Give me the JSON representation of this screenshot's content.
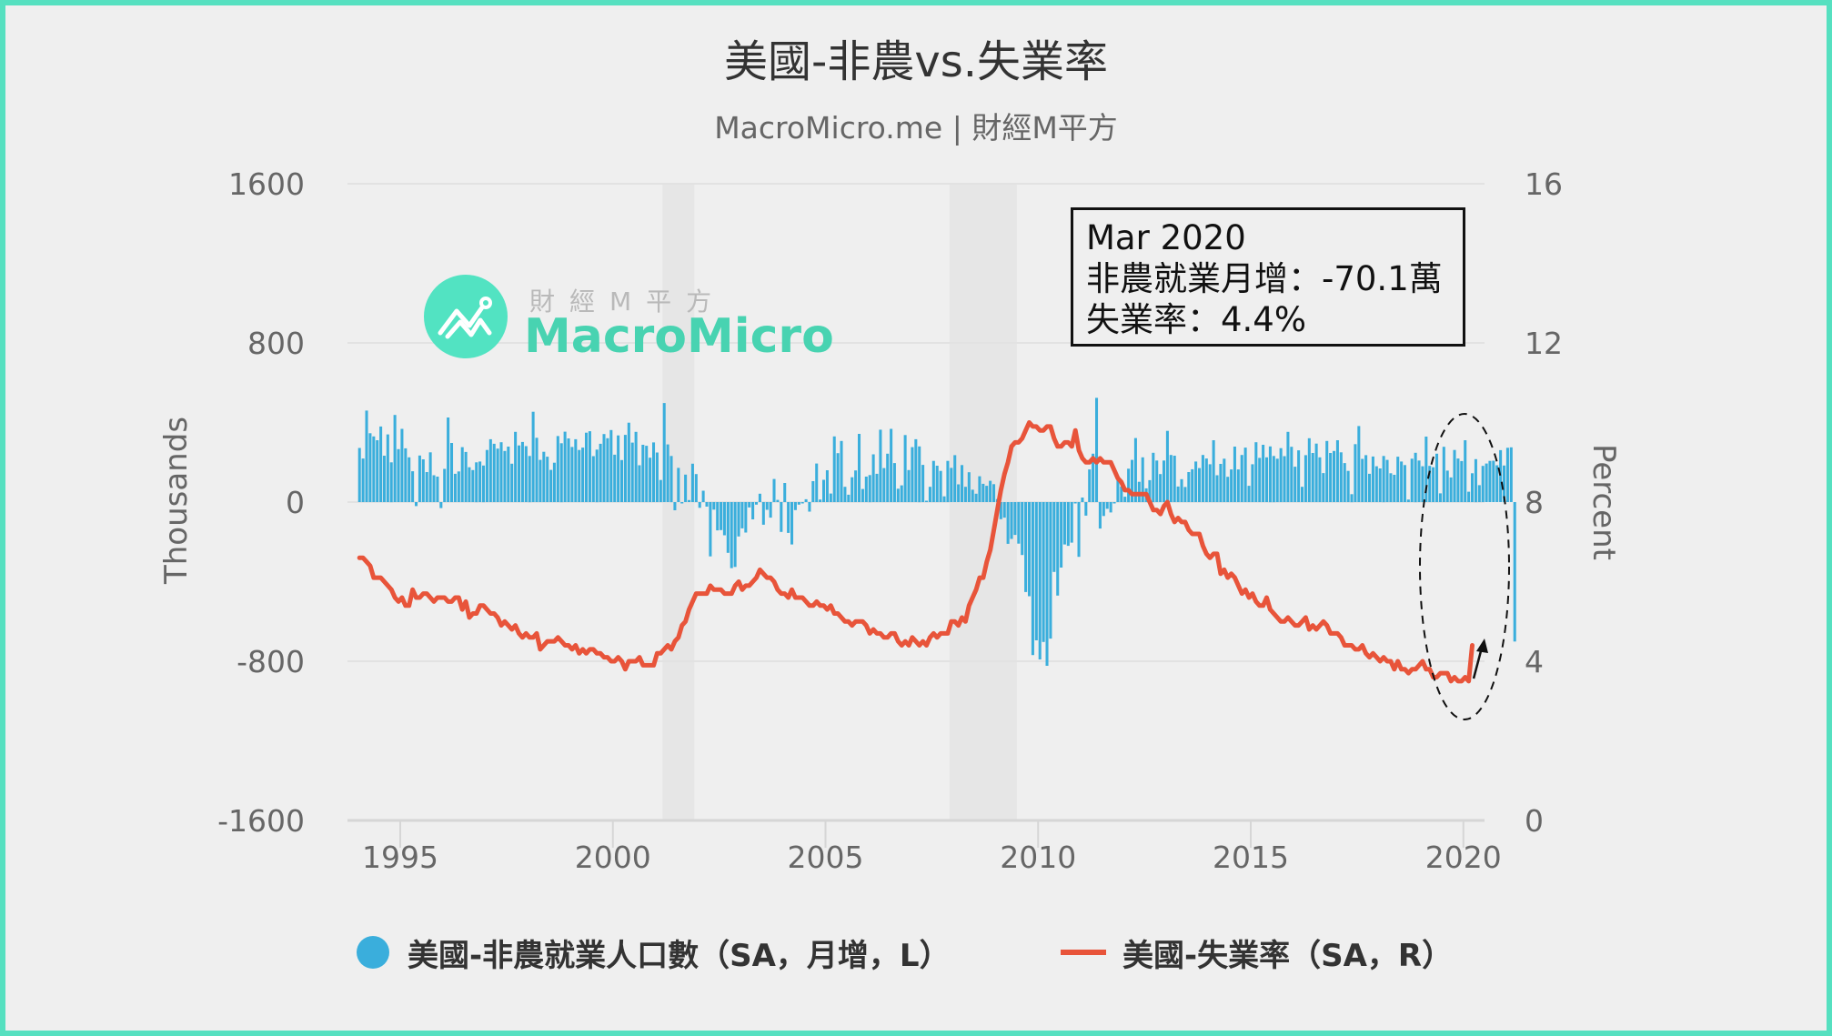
{
  "header": {
    "title": "美國-非農vs.失業率",
    "subtitle": "MacroMicro.me | 財經M平方"
  },
  "watermark": {
    "cn": "財經M平方",
    "en": "MacroMicro"
  },
  "tooltip": {
    "date": "Mar 2020",
    "line1": "非農就業月增：-70.1萬",
    "line2": "失業率：4.4%"
  },
  "legend": {
    "nfp_label": "美國-非農就業人口數（SA，月增，L）",
    "unrate_label": "美國-失業率（SA，R）"
  },
  "colors": {
    "bars": "#3aaedc",
    "line": "#e8543a",
    "border": "#56e0c0",
    "background": "#efefef",
    "recession": "#e6e6e6"
  },
  "chart_data": {
    "type": "bar+line",
    "title": "美國-非農vs.失業率",
    "subtitle": "MacroMicro.me | 財經M平方",
    "xlabel": "",
    "ylabel_left": "Thousands",
    "ylabel_right": "Percent",
    "ylim_left": [
      -1600,
      1600
    ],
    "ylim_right": [
      0,
      16
    ],
    "yticks_left": [
      "1600",
      "800",
      "0",
      "-800",
      "-1600"
    ],
    "yticks_right": [
      "16",
      "12",
      "8",
      "4",
      "0"
    ],
    "xticks": [
      "1995",
      "2000",
      "2005",
      "2010",
      "2015",
      "2020"
    ],
    "grid": true,
    "legend_position": "bottom",
    "start": "1994-01",
    "end": "2020-03",
    "frequency": "monthly",
    "recessions": [
      [
        "2001-03",
        "2001-11"
      ],
      [
        "2007-12",
        "2009-06"
      ]
    ],
    "annotation": {
      "type": "dashed-ellipse+arrow",
      "around": "2020-03",
      "text": "Mar 2020: 非農就業月增 -70.1萬, 失業率 4.4%"
    },
    "series": [
      {
        "name": "美國-非農就業人口數（SA，月增，L）",
        "axis": "left",
        "kind": "bar",
        "values": [
          272,
          219,
          460,
          346,
          330,
          311,
          380,
          233,
          340,
          200,
          438,
          266,
          368,
          270,
          225,
          155,
          -20,
          234,
          215,
          151,
          250,
          135,
          128,
          -30,
          167,
          425,
          297,
          142,
          154,
          276,
          252,
          175,
          161,
          200,
          204,
          184,
          262,
          316,
          293,
          269,
          301,
          257,
          279,
          193,
          353,
          285,
          302,
          281,
          232,
          454,
          323,
          212,
          253,
          228,
          162,
          198,
          332,
          296,
          354,
          320,
          277,
          316,
          262,
          274,
          349,
          356,
          231,
          264,
          293,
          342,
          321,
          362,
          238,
          335,
          211,
          338,
          399,
          299,
          353,
          185,
          288,
          283,
          223,
          300,
          249,
          111,
          498,
          290,
          232,
          -41,
          172,
          -5,
          138,
          10,
          193,
          141,
          -29,
          57,
          -23,
          -273,
          -38,
          -142,
          -141,
          -167,
          -255,
          -332,
          -326,
          -173,
          -132,
          -153,
          -27,
          -87,
          -13,
          42,
          -114,
          -39,
          -78,
          116,
          11,
          -150,
          96,
          -155,
          -213,
          -40,
          -13,
          -2,
          14,
          -48,
          105,
          194,
          13,
          112,
          160,
          43,
          330,
          246,
          307,
          77,
          37,
          125,
          159,
          343,
          66,
          128,
          136,
          240,
          142,
          364,
          171,
          243,
          368,
          196,
          67,
          84,
          337,
          161,
          276,
          316,
          280,
          187,
          6,
          77,
          207,
          183,
          157,
          29,
          207,
          172,
          236,
          89,
          186,
          77,
          150,
          62,
          42,
          130,
          92,
          82,
          107,
          90,
          15,
          -86,
          -78,
          -210,
          -185,
          -165,
          -209,
          -266,
          -452,
          -473,
          -769,
          -695,
          -791,
          -703,
          -823,
          -686,
          -351,
          -470,
          -329,
          -213,
          -220,
          -204,
          -2,
          -275,
          23,
          -68,
          164,
          243,
          524,
          -133,
          -70,
          -34,
          -52,
          -2,
          132,
          78,
          27,
          168,
          212,
          322,
          102,
          225,
          69,
          110,
          248,
          209,
          141,
          209,
          358,
          237,
          233,
          78,
          115,
          76,
          151,
          165,
          204,
          171,
          237,
          219,
          190,
          311,
          135,
          192,
          218,
          127,
          164,
          279,
          164,
          237,
          274,
          82,
          190,
          301,
          222,
          288,
          225,
          280,
          232,
          218,
          271,
          231,
          353,
          278,
          178,
          260,
          77,
          236,
          321,
          247,
          294,
          225,
          146,
          307,
          247,
          257,
          311,
          250,
          196,
          157,
          40,
          291,
          382,
          217,
          236,
          142,
          229,
          180,
          169,
          232,
          212,
          145,
          137,
          228,
          204,
          186,
          13,
          218,
          248,
          209,
          180,
          329,
          182,
          175,
          243,
          44,
          278,
          158,
          124,
          262,
          219,
          206,
          311,
          52,
          145,
          216,
          85,
          182,
          194,
          207,
          208,
          185,
          261,
          184,
          273,
          275,
          -701
        ]
      },
      {
        "name": "美國-失業率（SA，R）",
        "axis": "right",
        "kind": "line",
        "values": [
          6.6,
          6.6,
          6.5,
          6.4,
          6.1,
          6.1,
          6.1,
          6.0,
          5.9,
          5.8,
          5.6,
          5.5,
          5.6,
          5.4,
          5.4,
          5.8,
          5.6,
          5.6,
          5.7,
          5.7,
          5.6,
          5.5,
          5.6,
          5.6,
          5.6,
          5.5,
          5.5,
          5.6,
          5.6,
          5.3,
          5.5,
          5.1,
          5.2,
          5.2,
          5.4,
          5.4,
          5.3,
          5.2,
          5.2,
          5.1,
          4.9,
          5.0,
          4.9,
          4.8,
          4.9,
          4.7,
          4.6,
          4.7,
          4.6,
          4.6,
          4.7,
          4.3,
          4.4,
          4.5,
          4.5,
          4.5,
          4.6,
          4.5,
          4.4,
          4.4,
          4.3,
          4.4,
          4.2,
          4.3,
          4.2,
          4.3,
          4.3,
          4.2,
          4.2,
          4.1,
          4.1,
          4.0,
          4.0,
          4.1,
          4.0,
          3.8,
          4.0,
          4.0,
          4.0,
          4.1,
          3.9,
          3.9,
          3.9,
          3.9,
          4.2,
          4.2,
          4.3,
          4.4,
          4.3,
          4.5,
          4.6,
          4.9,
          5.0,
          5.3,
          5.5,
          5.7,
          5.7,
          5.7,
          5.7,
          5.9,
          5.8,
          5.8,
          5.8,
          5.7,
          5.7,
          5.7,
          5.9,
          6.0,
          5.8,
          5.9,
          5.9,
          6.0,
          6.1,
          6.3,
          6.2,
          6.1,
          6.1,
          6.0,
          5.8,
          5.7,
          5.7,
          5.6,
          5.8,
          5.6,
          5.6,
          5.6,
          5.5,
          5.4,
          5.4,
          5.5,
          5.4,
          5.4,
          5.3,
          5.4,
          5.2,
          5.2,
          5.1,
          5.0,
          5.0,
          4.9,
          5.0,
          5.0,
          5.0,
          4.9,
          4.7,
          4.8,
          4.7,
          4.7,
          4.6,
          4.6,
          4.7,
          4.7,
          4.5,
          4.4,
          4.5,
          4.4,
          4.6,
          4.5,
          4.4,
          4.5,
          4.4,
          4.6,
          4.7,
          4.6,
          4.7,
          4.7,
          4.7,
          5.0,
          5.0,
          4.9,
          5.1,
          5.0,
          5.4,
          5.6,
          5.8,
          6.1,
          6.1,
          6.5,
          6.8,
          7.3,
          7.8,
          8.3,
          8.7,
          9.0,
          9.4,
          9.5,
          9.5,
          9.6,
          9.8,
          10.0,
          9.9,
          9.9,
          9.8,
          9.8,
          9.9,
          9.9,
          9.6,
          9.4,
          9.4,
          9.5,
          9.5,
          9.4,
          9.8,
          9.3,
          9.1,
          9.0,
          9.0,
          9.1,
          9.0,
          9.1,
          9.0,
          9.0,
          9.0,
          8.8,
          8.6,
          8.5,
          8.3,
          8.3,
          8.2,
          8.2,
          8.2,
          8.2,
          8.2,
          8.0,
          7.8,
          7.8,
          7.7,
          7.9,
          8.0,
          7.7,
          7.5,
          7.6,
          7.5,
          7.5,
          7.3,
          7.2,
          7.2,
          7.2,
          6.9,
          6.7,
          6.6,
          6.7,
          6.7,
          6.2,
          6.3,
          6.1,
          6.2,
          6.1,
          5.9,
          5.7,
          5.8,
          5.6,
          5.7,
          5.5,
          5.4,
          5.4,
          5.6,
          5.3,
          5.2,
          5.1,
          5.0,
          5.0,
          5.1,
          5.0,
          4.9,
          4.9,
          5.0,
          5.1,
          4.8,
          4.9,
          4.8,
          4.9,
          5.0,
          4.9,
          4.7,
          4.7,
          4.7,
          4.6,
          4.4,
          4.4,
          4.4,
          4.3,
          4.3,
          4.4,
          4.2,
          4.1,
          4.2,
          4.1,
          4.0,
          4.1,
          4.0,
          4.0,
          3.8,
          4.0,
          3.8,
          3.8,
          3.7,
          3.8,
          3.8,
          3.9,
          4.0,
          3.8,
          3.8,
          3.6,
          3.6,
          3.7,
          3.7,
          3.7,
          3.5,
          3.6,
          3.5,
          3.5,
          3.6,
          3.5,
          4.4
        ]
      }
    ]
  }
}
